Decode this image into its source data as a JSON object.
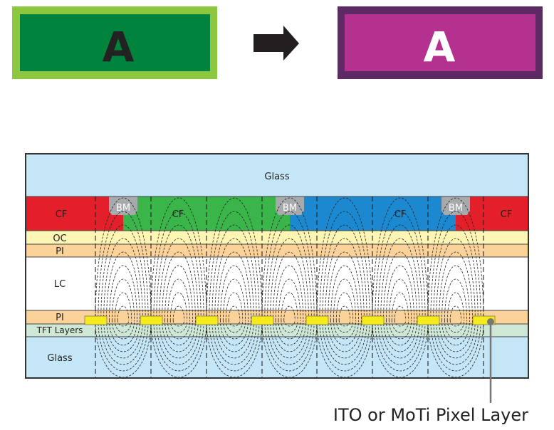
{
  "before": {
    "letter": "A",
    "outer_color": "#8dc63f",
    "inner_color": "#00843d",
    "letter_color": "#222222"
  },
  "arrow": {
    "icon": "right-arrow-icon",
    "color": "#231f20"
  },
  "after": {
    "letter": "A",
    "outer_color": "#5e2a63",
    "inner_color": "#b5318f",
    "letter_color": "#ffffff"
  },
  "layers": {
    "glass_top": "Glass",
    "cf_left": "CF",
    "cf_green": "CF",
    "cf_blue": "CF",
    "cf_right": "CF",
    "bm": [
      "BM",
      "BM",
      "BM"
    ],
    "oc": "OC",
    "pi_top": "PI",
    "lc": "LC",
    "pi_bottom": "PI",
    "tft": "TFT Layers",
    "glass_bottom": "Glass"
  },
  "colors": {
    "glass": "#c5e6f7",
    "red": "#e3202a",
    "green": "#3ab54a",
    "blue": "#1b88d0",
    "bm": "#a7a9ac",
    "oc": "#fdf5b3",
    "pi": "#fbd39a",
    "tft": "#cfe7d6",
    "electrode": "#f5ea1c"
  },
  "callout": "ITO or MoTi Pixel Layer"
}
